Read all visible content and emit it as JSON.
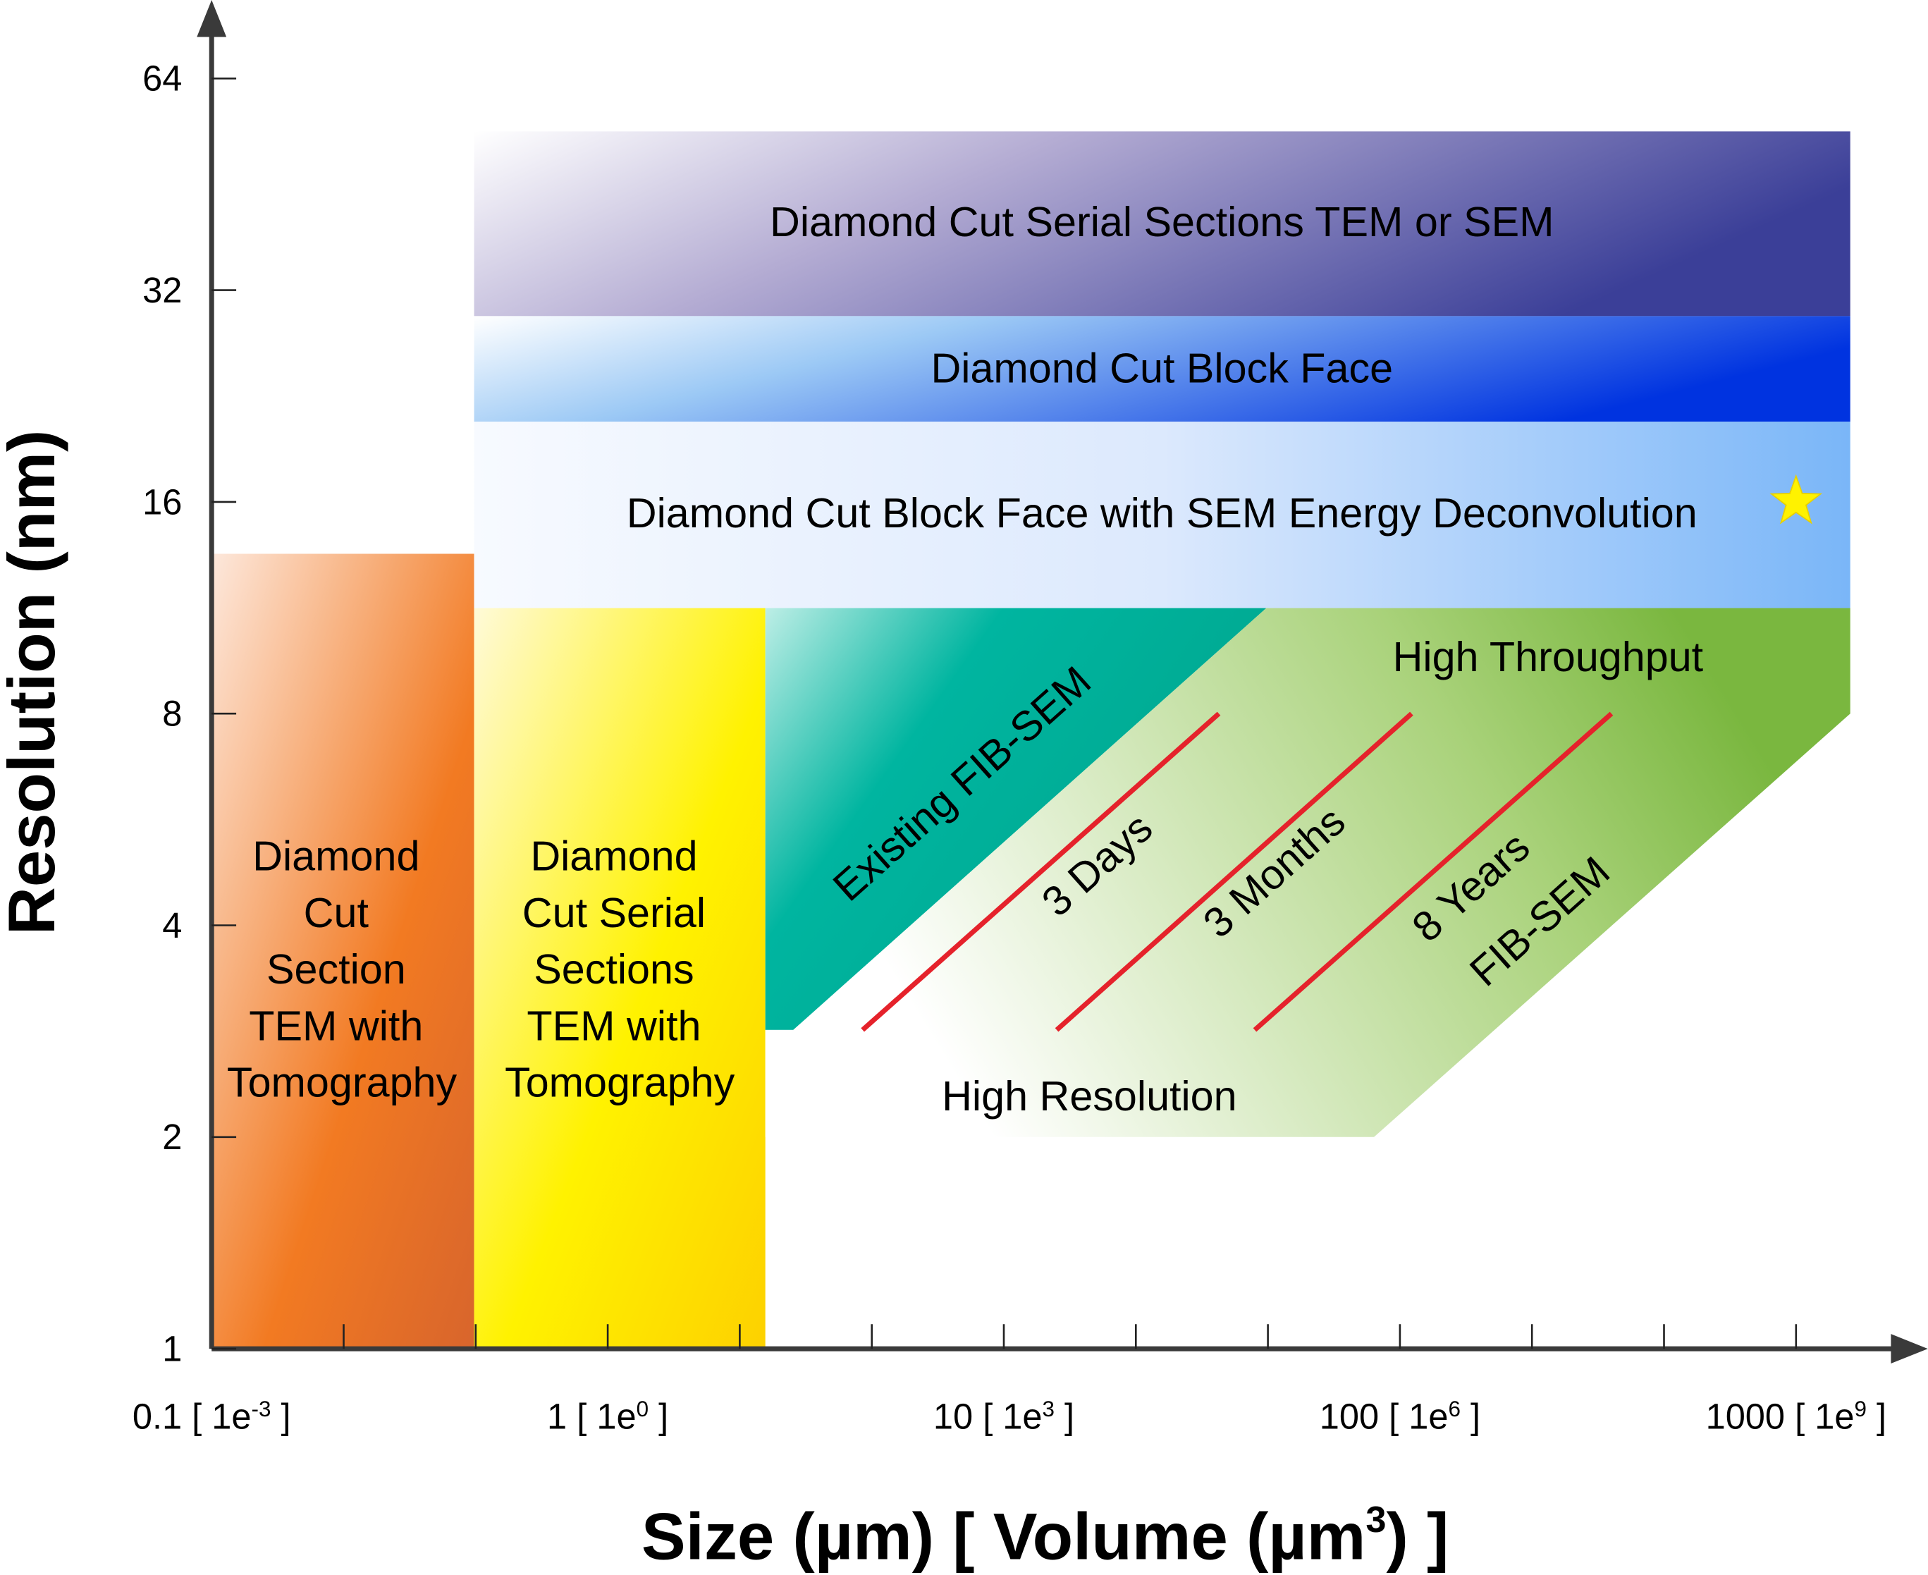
{
  "chart_data": {
    "type": "region-map",
    "xlabel": {
      "main": "Size (µm) [ Volume (µm",
      "sup": "3",
      "close": ") ]"
    },
    "ylabel": "Resolution (nm)",
    "x_scale": "log10",
    "y_scale": "log2",
    "xlim": [
      0.1,
      2000
    ],
    "ylim": [
      1,
      90
    ],
    "x_ticks": [
      {
        "value": 0.1,
        "main": "0.1 [ 1e",
        "sup": "-3",
        "close": " ]"
      },
      {
        "value": 1,
        "main": "1 [ 1e",
        "sup": "0",
        "close": " ]"
      },
      {
        "value": 10,
        "main": "10 [ 1e",
        "sup": "3",
        "close": " ]"
      },
      {
        "value": 100,
        "main": "100 [ 1e",
        "sup": "6",
        "close": " ]"
      },
      {
        "value": 1000,
        "main": "1000 [ 1e",
        "sup": "9",
        "close": " ]"
      }
    ],
    "y_ticks": [
      "1",
      "2",
      "4",
      "8",
      "16",
      "32",
      "64"
    ],
    "regions": [
      {
        "label": [
          "Diamond",
          "Cut",
          "Section",
          "TEM with",
          "Tomography"
        ],
        "color": "#f07a22",
        "points": [
          [
            0.1,
            1
          ],
          [
            0.46,
            1
          ],
          [
            0.46,
            13.5
          ],
          [
            0.1,
            13.5
          ]
        ]
      },
      {
        "label": [
          "Diamond",
          "Cut Serial",
          "Sections",
          "TEM with",
          "Tomography"
        ],
        "color": "#fff200",
        "points": [
          [
            0.46,
            1
          ],
          [
            2.5,
            1
          ],
          [
            2.5,
            11.3
          ],
          [
            0.46,
            11.3
          ]
        ]
      },
      {
        "label": [
          "Diamond Cut Serial Sections TEM or SEM"
        ],
        "color": "#3d3a96",
        "points": [
          [
            0.46,
            29.4
          ],
          [
            1370,
            29.4
          ],
          [
            1370,
            53.8
          ],
          [
            0.46,
            53.8
          ]
        ]
      },
      {
        "label": [
          "Diamond Cut Block Face"
        ],
        "color": "#0033e0",
        "points": [
          [
            0.46,
            20.8
          ],
          [
            1370,
            20.8
          ],
          [
            1370,
            29.4
          ],
          [
            0.46,
            29.4
          ]
        ]
      },
      {
        "label": [
          "Diamond Cut Block Face with SEM Energy Deconvolution"
        ],
        "color": "#7ab6f8",
        "points": [
          [
            0.46,
            11.3
          ],
          [
            1370,
            11.3
          ],
          [
            1370,
            20.8
          ],
          [
            0.46,
            20.8
          ]
        ]
      },
      {
        "label": [
          "Existing FIB-SEM"
        ],
        "color": "#00a58c",
        "points": [
          [
            2.5,
            11.3
          ],
          [
            46,
            11.3
          ],
          [
            2.94,
            2.84
          ],
          [
            2.5,
            2.84
          ]
        ]
      },
      {
        "label": [
          "FIB-SEM"
        ],
        "color": "#7ab73f",
        "points": [
          [
            46,
            11.3
          ],
          [
            1370,
            11.3
          ],
          [
            1370,
            8
          ],
          [
            86,
            2
          ],
          [
            2.5,
            2
          ],
          [
            2.5,
            2.84
          ],
          [
            2.94,
            2.84
          ]
        ]
      }
    ],
    "lines": [
      {
        "label": "3 Days",
        "color": "#e5222b",
        "points": [
          [
            4.4,
            2.84
          ],
          [
            34.9,
            8
          ]
        ]
      },
      {
        "label": "3 Months",
        "color": "#e5222b",
        "points": [
          [
            13.6,
            2.84
          ],
          [
            107,
            8
          ]
        ]
      },
      {
        "label": "8 Years",
        "color": "#e5222b",
        "points": [
          [
            43,
            2.84
          ],
          [
            342,
            8
          ]
        ]
      }
    ],
    "annotations": {
      "high_throughput": "High Throughput",
      "high_resolution": "High Resolution"
    },
    "marker": {
      "shape": "star",
      "color": "#fff200",
      "at": [
        1000,
        16
      ]
    }
  }
}
